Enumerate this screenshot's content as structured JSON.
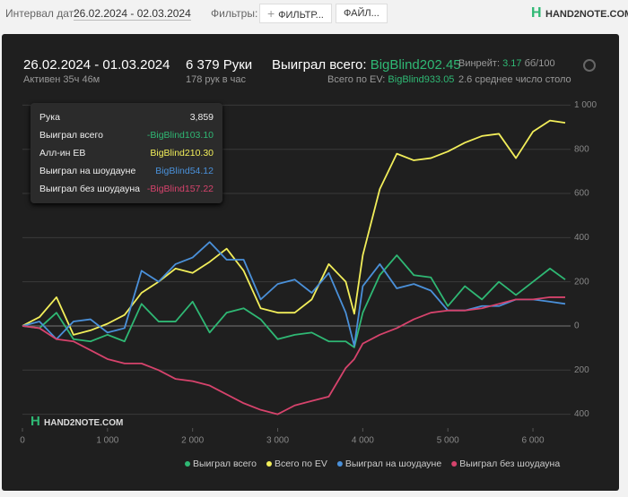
{
  "top_bar": {
    "date_label": "Интервал дат:",
    "date_range": "26.02.2024 - 02.03.2024",
    "filters_label": "Фильтры:",
    "filter_button": "ФИЛЬТР...",
    "file_button": "ФАЙЛ...",
    "logo": "HAND2NOTE.COM"
  },
  "summary": {
    "period": "26.02.2024 - 01.03.2024",
    "active": "Активен 35ч 46м",
    "hands": "6 379 Руки",
    "hands_per_hour": "178 рук в час",
    "won_label": "Выиграл всего:",
    "won_value": "BigBlind202.45",
    "ev_label": "Всего по EV:",
    "ev_value": "BigBlind933.05",
    "winrate_label": "Винрейт:",
    "winrate_value": "3.17",
    "winrate_unit": "бб/100",
    "avg_tables": "2.6 среднее число столо"
  },
  "tooltip": {
    "rows": [
      [
        "Рука",
        "3,859"
      ],
      [
        "Выиграл всего",
        "-BigBlind103.10"
      ],
      [
        "Алл-ин EB",
        "BigBlind210.30"
      ],
      [
        "Выиграл на шоудауне",
        "BigBlind54.12"
      ],
      [
        "Выиграл без шоудауна",
        "-BigBlind157.22"
      ]
    ]
  },
  "watermark": "HAND2NOTE.COM",
  "chart_data": {
    "type": "line",
    "x": [
      0,
      200,
      400,
      600,
      800,
      1000,
      1200,
      1400,
      1600,
      1800,
      2000,
      2200,
      2400,
      2600,
      2800,
      3000,
      3200,
      3400,
      3600,
      3800,
      3900,
      4000,
      4200,
      4400,
      4600,
      4800,
      5000,
      5200,
      5400,
      5600,
      5800,
      6000,
      6200,
      6379
    ],
    "series": [
      {
        "name": "Выиграл всего",
        "color": "#2fb874",
        "values": [
          0,
          -10,
          60,
          -60,
          -70,
          -40,
          -70,
          100,
          20,
          20,
          110,
          -30,
          60,
          80,
          30,
          -60,
          -40,
          -30,
          -70,
          -70,
          -97,
          60,
          230,
          320,
          230,
          220,
          90,
          180,
          120,
          200,
          140,
          200,
          260,
          210
        ]
      },
      {
        "name": "Всего по EV",
        "color": "#f2ee5a",
        "values": [
          0,
          40,
          130,
          -40,
          -20,
          10,
          50,
          150,
          200,
          260,
          240,
          290,
          350,
          250,
          80,
          60,
          60,
          120,
          280,
          200,
          55,
          320,
          620,
          780,
          750,
          760,
          790,
          830,
          860,
          870,
          760,
          880,
          930,
          920
        ]
      },
      {
        "name": "Выиграл на шоудауне",
        "color": "#4a90d9",
        "values": [
          0,
          20,
          -60,
          20,
          30,
          -30,
          -10,
          250,
          200,
          280,
          310,
          380,
          300,
          300,
          120,
          190,
          210,
          150,
          240,
          60,
          -90,
          180,
          280,
          170,
          190,
          160,
          70,
          70,
          90,
          90,
          120,
          120,
          110,
          100
        ]
      },
      {
        "name": "Выиграл без шоудауна",
        "color": "#d6436c",
        "values": [
          0,
          -10,
          -60,
          -70,
          -110,
          -150,
          -170,
          -170,
          -200,
          -240,
          -250,
          -270,
          -310,
          -350,
          -380,
          -400,
          -360,
          -340,
          -320,
          -190,
          -150,
          -80,
          -40,
          -10,
          30,
          60,
          70,
          70,
          80,
          100,
          120,
          120,
          130,
          130
        ]
      }
    ],
    "xlim": [
      0,
      6379
    ],
    "xticks": [
      0,
      {
        "value": 1000,
        "label": "1 000"
      },
      {
        "value": 2000,
        "label": "2 000"
      },
      {
        "value": 3000,
        "label": "3 000"
      },
      {
        "value": 4000,
        "label": "4 000"
      },
      {
        "value": 5000,
        "label": "5 000"
      },
      {
        "value": 6000,
        "label": "6 000"
      }
    ],
    "ylim": [
      -430,
      1030
    ],
    "yticks": [
      {
        "value": -400,
        "label": "400"
      },
      {
        "value": -200,
        "label": "200"
      },
      0,
      200,
      400,
      600,
      800,
      {
        "value": 1000,
        "label": "1 000"
      }
    ],
    "grid": true
  }
}
